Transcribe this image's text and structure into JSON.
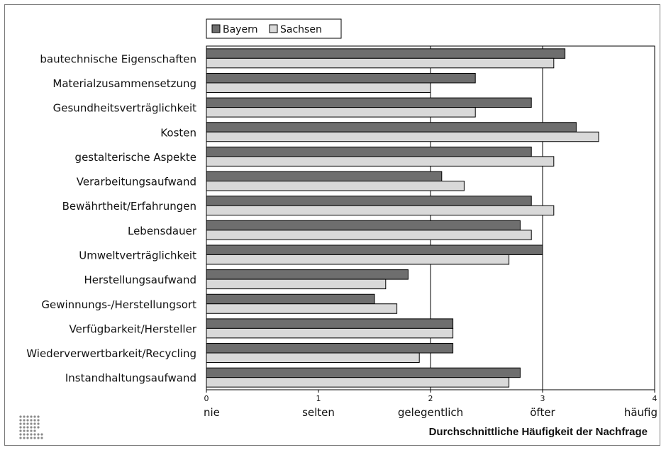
{
  "chart_data": {
    "type": "bar",
    "orientation": "horizontal",
    "categories": [
      "bautechnische Eigenschaften",
      "Materialzusammensetzung",
      "Gesundheitsverträglichkeit",
      "Kosten",
      "gestalterische Aspekte",
      "Verarbeitungsaufwand",
      "Bewährtheit/Erfahrungen",
      "Lebensdauer",
      "Umweltverträglichkeit",
      "Herstellungsaufwand",
      "Gewinnungs-/Herstellungsort",
      "Verfügbarkeit/Hersteller",
      "Wiederverwertbarkeit/Recycling",
      "Instandhaltungsaufwand"
    ],
    "series": [
      {
        "name": "Bayern",
        "color": "#6e6e6e",
        "values": [
          3.2,
          2.4,
          2.9,
          3.3,
          2.9,
          2.1,
          2.9,
          2.8,
          3.0,
          1.8,
          1.5,
          2.2,
          2.2,
          2.8
        ]
      },
      {
        "name": "Sachsen",
        "color": "#d9d9d9",
        "values": [
          3.1,
          2.0,
          2.4,
          3.5,
          3.1,
          2.3,
          3.1,
          2.9,
          2.7,
          1.6,
          1.7,
          2.2,
          1.9,
          2.7
        ]
      }
    ],
    "xlim": [
      0,
      4
    ],
    "xticks": [
      "0",
      "1",
      "2",
      "3",
      "4"
    ],
    "xtick_labels": [
      "nie",
      "selten",
      "gelegentlich",
      "öfter",
      "häufig"
    ],
    "xlabel": "Durchschnittliche Häufigkeit der Nachfrage",
    "gridlines_at": [
      2,
      3
    ],
    "legend_position": "top-left"
  }
}
